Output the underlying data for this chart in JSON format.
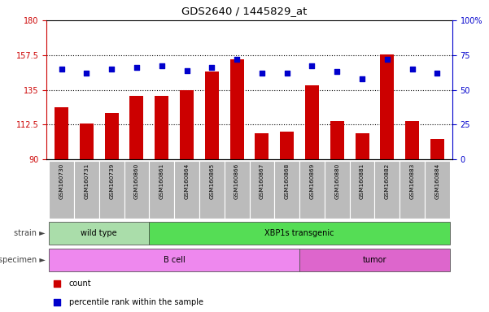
{
  "title": "GDS2640 / 1445829_at",
  "samples": [
    "GSM160730",
    "GSM160731",
    "GSM160739",
    "GSM160860",
    "GSM160861",
    "GSM160864",
    "GSM160865",
    "GSM160866",
    "GSM160867",
    "GSM160868",
    "GSM160869",
    "GSM160880",
    "GSM160881",
    "GSM160882",
    "GSM160883",
    "GSM160884"
  ],
  "counts": [
    124,
    113,
    120,
    131,
    131,
    135,
    147,
    155,
    107,
    108,
    138,
    115,
    107,
    158,
    115,
    103
  ],
  "percentiles": [
    65,
    62,
    65,
    66,
    67,
    64,
    66,
    72,
    62,
    62,
    67,
    63,
    58,
    72,
    65,
    62
  ],
  "bar_color": "#cc0000",
  "dot_color": "#0000cc",
  "ylim_left": [
    90,
    180
  ],
  "yticks_left": [
    90,
    112.5,
    135,
    157.5,
    180
  ],
  "ytick_labels_left": [
    "90",
    "112.5",
    "135",
    "157.5",
    "180"
  ],
  "ylim_right": [
    0,
    100
  ],
  "yticks_right": [
    0,
    25,
    50,
    75,
    100
  ],
  "ytick_labels_right": [
    "0",
    "25",
    "50",
    "75",
    "100%"
  ],
  "hlines": [
    112.5,
    135,
    157.5
  ],
  "strain_groups": [
    {
      "label": "wild type",
      "start": 0,
      "end": 4,
      "color": "#aaddaa"
    },
    {
      "label": "XBP1s transgenic",
      "start": 4,
      "end": 16,
      "color": "#55dd55"
    }
  ],
  "specimen_groups": [
    {
      "label": "B cell",
      "start": 0,
      "end": 10,
      "color": "#ee88ee"
    },
    {
      "label": "tumor",
      "start": 10,
      "end": 16,
      "color": "#dd66cc"
    }
  ],
  "background_color": "#ffffff",
  "xticklabel_bg": "#bbbbbb",
  "legend_count_color": "#cc0000",
  "legend_pct_color": "#0000cc"
}
